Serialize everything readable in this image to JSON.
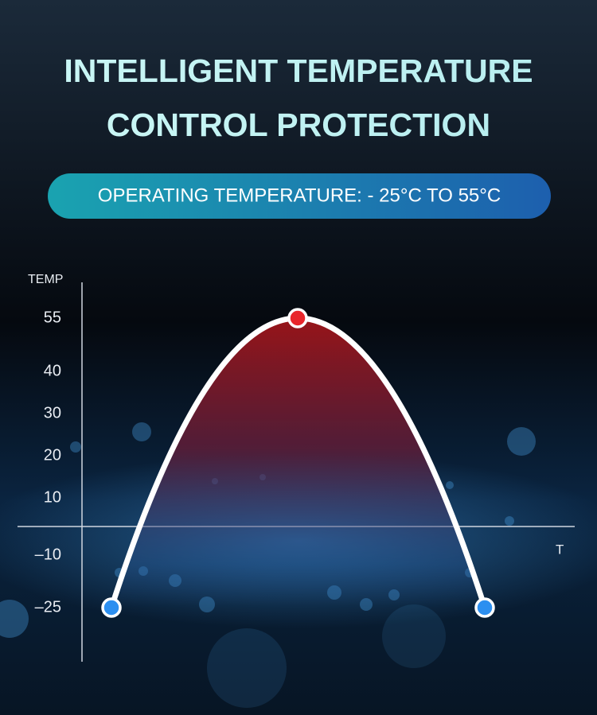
{
  "title": [
    "INTELLIGENT TEMPERATURE",
    "CONTROL PROTECTION"
  ],
  "badge": "OPERATING TEMPERATURE: - 25°C TO 55°C",
  "chart": {
    "y_label": "TEMP",
    "x_label": "T",
    "y_ticks": [
      {
        "value": 55,
        "label": "55"
      },
      {
        "value": 40,
        "label": "40"
      },
      {
        "value": 30,
        "label": "30"
      },
      {
        "value": 20,
        "label": "20"
      },
      {
        "value": 10,
        "label": "10"
      },
      {
        "value": -10,
        "label": "–10"
      },
      {
        "value": -25,
        "label": "–25"
      }
    ],
    "points": [
      -25,
      55,
      -25
    ]
  }
}
